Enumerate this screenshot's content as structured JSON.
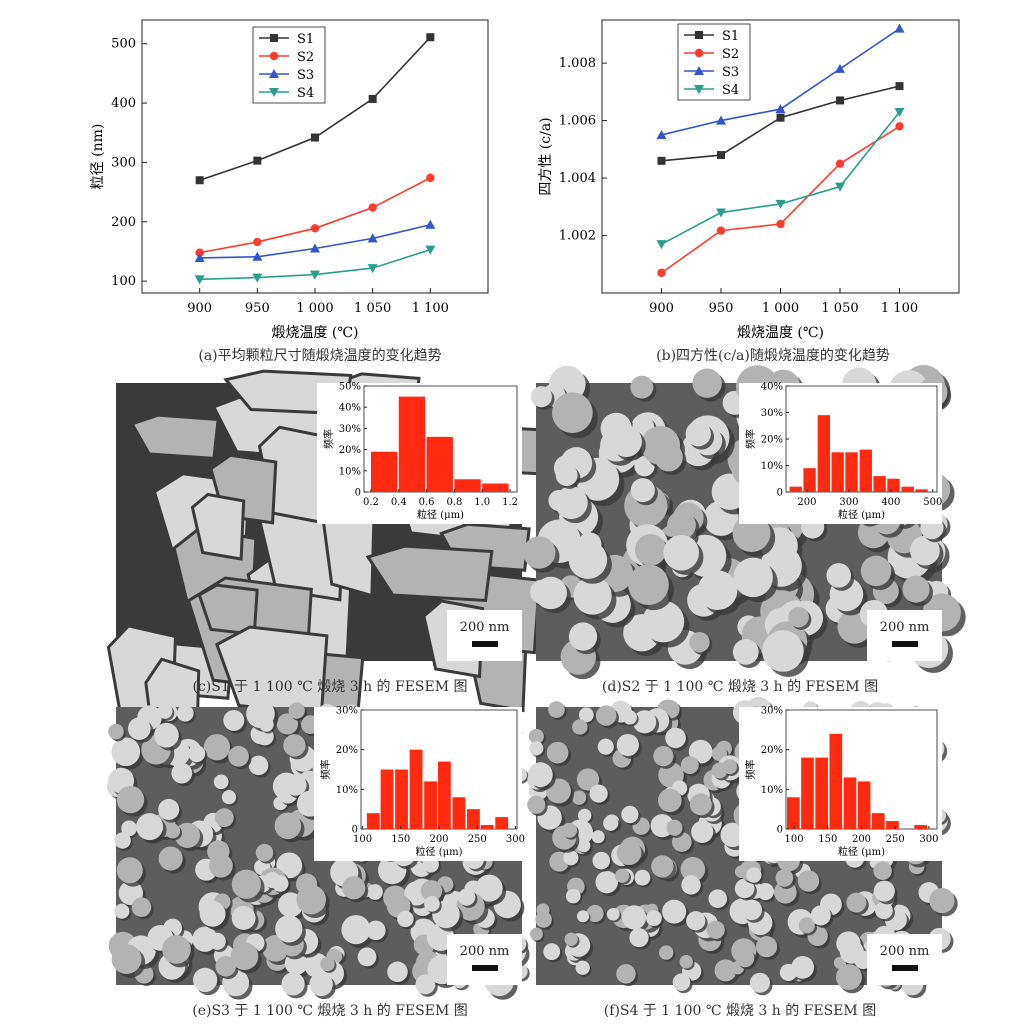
{
  "chart_data": [
    {
      "id": "a",
      "type": "line",
      "ylabel": "粒径 (nm)",
      "xlabel": "煅烧温度 (℃)",
      "x_ticks": [
        "900",
        "950",
        "1 000",
        "1 050",
        "1 100"
      ],
      "x": [
        900,
        950,
        1000,
        1050,
        1100
      ],
      "ylim": [
        80,
        540
      ],
      "y_ticks": [
        100,
        200,
        300,
        400,
        500
      ],
      "y_tick_labels": [
        "100",
        "200",
        "300",
        "400",
        "500"
      ],
      "legend_position": "top-center",
      "series": [
        {
          "name": "S1",
          "color": "#333333",
          "marker": "square",
          "values": [
            270,
            303,
            342,
            407,
            511
          ]
        },
        {
          "name": "S2",
          "color": "#ff3b30",
          "marker": "circle",
          "values": [
            148,
            166,
            189,
            224,
            274
          ]
        },
        {
          "name": "S3",
          "color": "#3355cc",
          "marker": "triangle-up",
          "values": [
            139,
            141,
            155,
            172,
            195
          ]
        },
        {
          "name": "S4",
          "color": "#2a9d8f",
          "marker": "triangle-down",
          "values": [
            103,
            106,
            111,
            122,
            153
          ]
        }
      ]
    },
    {
      "id": "b",
      "type": "line",
      "ylabel": "四方性 (c/a)",
      "xlabel": "煅烧温度 (℃)",
      "x_ticks": [
        "900",
        "950",
        "1 000",
        "1 050",
        "1 100"
      ],
      "x": [
        900,
        950,
        1000,
        1050,
        1100
      ],
      "ylim": [
        1.0,
        1.0095
      ],
      "y_ticks": [
        1.002,
        1.004,
        1.006,
        1.008
      ],
      "y_tick_labels": [
        "1.002",
        "1.004",
        "1.006",
        "1.008"
      ],
      "legend_position": "top-left",
      "series": [
        {
          "name": "S1",
          "color": "#333333",
          "marker": "square",
          "values": [
            1.0046,
            1.0048,
            1.0061,
            1.0067,
            1.0072
          ]
        },
        {
          "name": "S2",
          "color": "#ff3b30",
          "marker": "circle",
          "values": [
            1.0007,
            1.00217,
            1.0024,
            1.0045,
            1.0058
          ]
        },
        {
          "name": "S3",
          "color": "#3355cc",
          "marker": "triangle-up",
          "values": [
            1.0055,
            1.006,
            1.0064,
            1.0078,
            1.0092
          ]
        },
        {
          "name": "S4",
          "color": "#2a9d8f",
          "marker": "triangle-down",
          "values": [
            1.0017,
            1.0028,
            1.0031,
            1.0037,
            1.0063
          ]
        }
      ]
    },
    {
      "id": "c_hist",
      "type": "bar",
      "ylabel": "频率",
      "xlabel": "粒径 (μm)",
      "bar_color": "#ff2a10",
      "xlim": [
        0.15,
        1.25
      ],
      "ylim": [
        0,
        50
      ],
      "x_ticks": [
        0.2,
        0.4,
        0.6,
        0.8,
        1.0,
        1.2
      ],
      "x_tick_labels": [
        "0.2",
        "0.4",
        "0.6",
        "0.8",
        "1.0",
        "1.2"
      ],
      "y_ticks": [
        0,
        10,
        20,
        30,
        40,
        50
      ],
      "y_tick_labels": [
        "0",
        "10%",
        "20%",
        "30%",
        "40%",
        "50%"
      ],
      "bin_width": 0.2,
      "bins": [
        0.3,
        0.5,
        0.7,
        0.9,
        1.1
      ],
      "values": [
        19,
        45,
        26,
        6,
        4
      ]
    },
    {
      "id": "d_hist",
      "type": "bar",
      "ylabel": "频率",
      "xlabel": "粒径 (μm)",
      "bar_color": "#ff2a10",
      "xlim": [
        150,
        510
      ],
      "ylim": [
        0,
        40
      ],
      "x_ticks": [
        200,
        300,
        400,
        500
      ],
      "x_tick_labels": [
        "200",
        "300",
        "400",
        "500"
      ],
      "y_ticks": [
        0,
        10,
        20,
        30,
        40
      ],
      "y_tick_labels": [
        "0",
        "10%",
        "20%",
        "30%",
        "40%"
      ],
      "bin_width": 33,
      "bins": [
        175,
        208,
        242,
        275,
        308,
        342,
        375,
        408,
        442,
        475
      ],
      "values": [
        2,
        9,
        29,
        15,
        15,
        16,
        6,
        5,
        2,
        1
      ]
    },
    {
      "id": "e_hist",
      "type": "bar",
      "ylabel": "频率",
      "xlabel": "粒径 (μm)",
      "bar_color": "#ff2a10",
      "xlim": [
        98,
        302
      ],
      "ylim": [
        0,
        30
      ],
      "x_ticks": [
        100,
        150,
        200,
        250,
        300
      ],
      "x_tick_labels": [
        "100",
        "150",
        "200",
        "250",
        "300"
      ],
      "y_ticks": [
        0,
        10,
        20,
        30
      ],
      "y_tick_labels": [
        "0",
        "10%",
        "20%",
        "30%"
      ],
      "bin_width": 18.7,
      "bins": [
        115,
        133,
        152,
        171,
        190,
        208,
        227,
        246,
        264,
        283
      ],
      "values": [
        4,
        15,
        15,
        20,
        12,
        17,
        8,
        5,
        1,
        3
      ]
    },
    {
      "id": "f_hist",
      "type": "bar",
      "ylabel": "频率",
      "xlabel": "粒径 (μm)",
      "bar_color": "#ff2a10",
      "xlim": [
        88,
        312
      ],
      "ylim": [
        0,
        30
      ],
      "x_ticks": [
        100,
        150,
        200,
        250,
        300
      ],
      "x_tick_labels": [
        "100",
        "150",
        "200",
        "250",
        "300"
      ],
      "y_ticks": [
        0,
        10,
        20,
        30
      ],
      "y_tick_labels": [
        "0",
        "10%",
        "20%",
        "30%"
      ],
      "bin_width": 21,
      "bins": [
        100,
        121,
        142,
        163,
        184,
        205,
        226,
        247,
        268,
        289
      ],
      "values": [
        8,
        18,
        18,
        24,
        13,
        12,
        4,
        2,
        0,
        1
      ]
    }
  ],
  "captions": {
    "a": "(a)平均颗粒尺寸随煅烧温度的变化趋势",
    "b": "(b)四方性(c/a)随煅烧温度的变化趋势",
    "c": "(c)S1 于 1 100 ℃ 煅烧 3 h 的 FESEM 图",
    "d": "(d)S2 于 1 100 ℃ 煅烧 3 h 的 FESEM 图",
    "e": "(e)S3 于 1 100 ℃ 煅烧 3 h 的 FESEM 图",
    "f": "(f)S4 于 1 100 ℃ 煅烧 3 h 的 FESEM 图"
  },
  "scale_bars": {
    "c": "200 nm",
    "d": "200 nm",
    "e": "200 nm",
    "f": "200 nm"
  },
  "micrograph_colors": {
    "background": "#5d5d5d",
    "dark": "#3a3a3a",
    "grain_light": "#d8d8d8",
    "grain_mid": "#b3b3b3"
  }
}
